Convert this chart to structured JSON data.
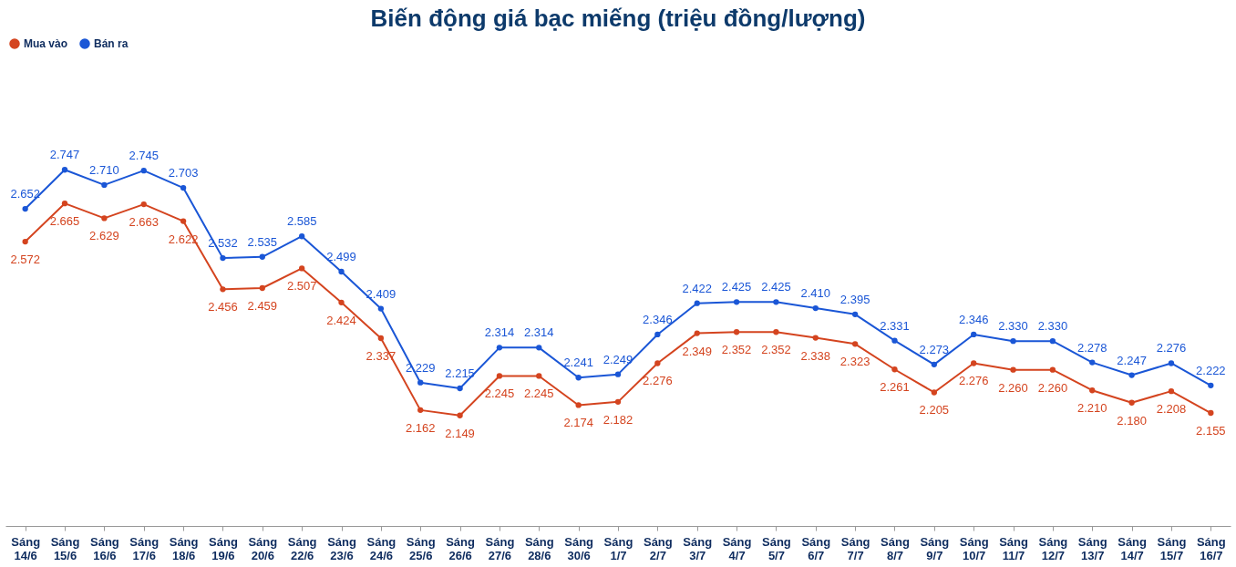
{
  "chart_data": {
    "type": "line",
    "title": "Biến động giá bạc miếng (triệu đồng/lượng)",
    "categories": [
      "Sáng 14/6",
      "Sáng 15/6",
      "Sáng 16/6",
      "Sáng 17/6",
      "Sáng 18/6",
      "Sáng 19/6",
      "Sáng 20/6",
      "Sáng 22/6",
      "Sáng 23/6",
      "Sáng 24/6",
      "Sáng 25/6",
      "Sáng 26/6",
      "Sáng 27/6",
      "Sáng 28/6",
      "Sáng 30/6",
      "Sáng 1/7",
      "Sáng 2/7",
      "Sáng 3/7",
      "Sáng 4/7",
      "Sáng 5/7",
      "Sáng 6/7",
      "Sáng 7/7",
      "Sáng 8/7",
      "Sáng 9/7",
      "Sáng 10/7",
      "Sáng 11/7",
      "Sáng 12/7",
      "Sáng 13/7",
      "Sáng 14/7",
      "Sáng 15/7",
      "Sáng 16/7"
    ],
    "series": [
      {
        "name": "Mua vào",
        "color": "#d4441f",
        "values": [
          2.572,
          2.665,
          2.629,
          2.663,
          2.622,
          2.456,
          2.459,
          2.507,
          2.424,
          2.337,
          2.162,
          2.149,
          2.245,
          2.245,
          2.174,
          2.182,
          2.276,
          2.349,
          2.352,
          2.352,
          2.338,
          2.323,
          2.261,
          2.205,
          2.276,
          2.26,
          2.26,
          2.21,
          2.18,
          2.208,
          2.155
        ],
        "value_labels": [
          "2.572",
          "2.665",
          "2.629",
          "2.663",
          "2.622",
          "2.456",
          "2.459",
          "2.507",
          "2.424",
          "2.337",
          "2.162",
          "2.149",
          "2.245",
          "2.245",
          "2.174",
          "2.182",
          "2.276",
          "2.349",
          "2.352",
          "2.352",
          "2.338",
          "2.323",
          "2.261",
          "2.205",
          "2.276",
          "2.260",
          "2.260",
          "2.210",
          "2.180",
          "2.208",
          "2.155"
        ]
      },
      {
        "name": "Bán ra",
        "color": "#1a56d6",
        "values": [
          2.652,
          2.747,
          2.71,
          2.745,
          2.703,
          2.532,
          2.535,
          2.585,
          2.499,
          2.409,
          2.229,
          2.215,
          2.314,
          2.314,
          2.241,
          2.249,
          2.346,
          2.422,
          2.425,
          2.425,
          2.41,
          2.395,
          2.331,
          2.273,
          2.346,
          2.33,
          2.33,
          2.278,
          2.247,
          2.276,
          2.222
        ],
        "value_labels": [
          "2.652",
          "2.747",
          "2.710",
          "2.745",
          "2.703",
          "2.532",
          "2.535",
          "2.585",
          "2.499",
          "2.409",
          "2.229",
          "2.215",
          "2.314",
          "2.314",
          "2.241",
          "2.249",
          "2.346",
          "2.422",
          "2.425",
          "2.425",
          "2.410",
          "2.395",
          "2.331",
          "2.273",
          "2.346",
          "2.330",
          "2.330",
          "2.278",
          "2.247",
          "2.276",
          "2.222"
        ]
      }
    ],
    "data_labels": true,
    "legend": "top left",
    "marker": "circle",
    "line_style": "solid",
    "grid": false
  }
}
